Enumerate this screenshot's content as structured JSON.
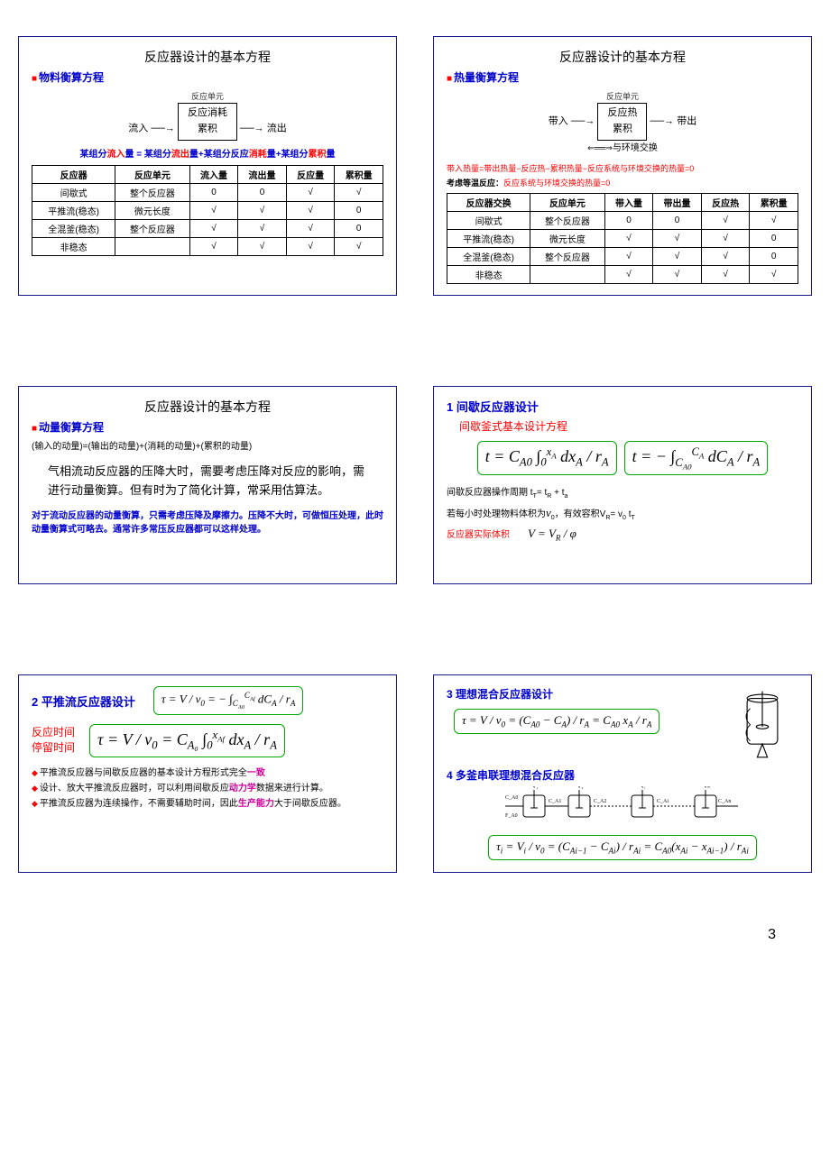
{
  "pageNumber": "3",
  "slide1": {
    "title": "反应器设计的基本方程",
    "section": "物料衡算方程",
    "flowUnit": "反应单元",
    "flowIn": "流入",
    "centerTop": "反应消耗",
    "centerBot": "累积",
    "flowOut": "流出",
    "equation_pre": "某组分",
    "eq_p1": "流入",
    "eq_mid1": "量 = 某组分",
    "eq_p2": "流出",
    "eq_mid2": "量+某组分反应",
    "eq_p3": "消耗",
    "eq_mid3": "量+某组分",
    "eq_p4": "累积",
    "eq_end": "量",
    "headers": [
      "反应器",
      "反应单元",
      "流入量",
      "流出量",
      "反应量",
      "累积量"
    ],
    "rows": [
      [
        "间歇式",
        "整个反应器",
        "0",
        "0",
        "√",
        "√"
      ],
      [
        "平推流(稳态)",
        "微元长度",
        "√",
        "√",
        "√",
        "0"
      ],
      [
        "全混釜(稳态)",
        "整个反应器",
        "√",
        "√",
        "√",
        "0"
      ],
      [
        "非稳态",
        "",
        "√",
        "√",
        "√",
        "√"
      ]
    ]
  },
  "slide2": {
    "title": "反应器设计的基本方程",
    "section": "热量衡算方程",
    "flowUnit": "反应单元",
    "flowIn": "带入",
    "centerTop": "反应热",
    "centerBot": "累积",
    "flowOut": "带出",
    "exchange": "与环境交换",
    "eqLine": "带入热量=带出热量−反应热−累积热量−反应系统与环境交换的热量=0",
    "consider": "考虑等温反应：",
    "considerRed": "反应系统与环境交换的热量=0",
    "headers": [
      "反应器交换",
      "反应单元",
      "带入量",
      "带出量",
      "反应热",
      "累积量"
    ],
    "rows": [
      [
        "间歇式",
        "整个反应器",
        "0",
        "0",
        "√",
        "√"
      ],
      [
        "平推流(稳态)",
        "微元长度",
        "√",
        "√",
        "√",
        "0"
      ],
      [
        "全混釜(稳态)",
        "整个反应器",
        "√",
        "√",
        "√",
        "0"
      ],
      [
        "非稳态",
        "",
        "√",
        "√",
        "√",
        "√"
      ]
    ]
  },
  "slide3": {
    "title": "反应器设计的基本方程",
    "section": "动量衡算方程",
    "balance": "(输入的动量)=(输出的动量)+(消耗的动量)+(累积的动量)",
    "body": "气相流动反应器的压降大时，需要考虑压降对反应的影响，需进行动量衡算。但有时为了简化计算，常采用估算法。",
    "blueNote": "对于流动反应器的动量衡算，只需考虑压降及摩擦力。压降不大时，可做恒压处理，此时动量衡算式可略去。通常许多常压反应器都可以这样处理。"
  },
  "slide4": {
    "title": "1 间歇反应器设计",
    "subtitle": "间歇釜式基本设计方程",
    "eq1": "t = C<sub>A0</sub> ∫<sub>0</sub><sup>x<sub>A</sub></sup> dx<sub>A</sub> / r<sub>A</sub>",
    "eq2": "t = − ∫<sub>C<sub>A0</sub></sub><sup>C<sub>A</sub></sup> dC<sub>A</sub> / r<sub>A</sub>",
    "line1a": "间歇反应器操作周期 t",
    "line1b": "= t",
    "line1c": " + t",
    "line2a": "若每小时处理物料体积为",
    "line2b": "v",
    "line2c": "，有效容积V",
    "line2d": "= v",
    "line2e": " t",
    "line3": "反应器实际体积",
    "eq3": "V = V<sub>R</sub> / φ"
  },
  "slide5": {
    "title": "2 平推流反应器设计",
    "eq1": "τ = V / v<sub>0</sub> = − ∫<sub>C<sub>A0</sub></sub><sup>C<sub>Af</sub></sup> dC<sub>A</sub> / r<sub>A</sub>",
    "leftLabel1": "反应时间",
    "leftLabel2": "停留时间",
    "eq2": "τ = V / v<sub>0</sub> = C<sub>A₀</sub> ∫<sub>0</sub><sup>x<sub>Af</sub></sup> dx<sub>A</sub> / r<sub>A</sub>",
    "b1a": "平推流反应器与间歇反应器的基本设计方程形式完全",
    "b1b": "一致",
    "b2a": "设计、放大平推流反应器时，可以利用间歇反应",
    "b2b": "动力学",
    "b2c": "数据来进行计算。",
    "b3a": "平推流反应器为连续操作，不需要辅助时间，因此",
    "b3b": "生产能力",
    "b3c": "大于间歇反应器。"
  },
  "slide6": {
    "title1": "3 理想混合反应器设计",
    "eq1": "τ = V / v<sub>0</sub> = (C<sub>A0</sub> − C<sub>A</sub>) / r<sub>A</sub> = C<sub>A0</sub> x<sub>A</sub> / r<sub>A</sub>",
    "title2": "4 多釜串联理想混合反应器",
    "eq2": "τ<sub>i</sub> = V<sub>i</sub> / v<sub>0</sub> = (C<sub>Ai−1</sub> − C<sub>Ai</sub>) / r<sub>Ai</sub> = C<sub>A0</sub>(x<sub>Ai</sub> − x<sub>Ai−1</sub>) / r<sub>Ai</sub>"
  }
}
